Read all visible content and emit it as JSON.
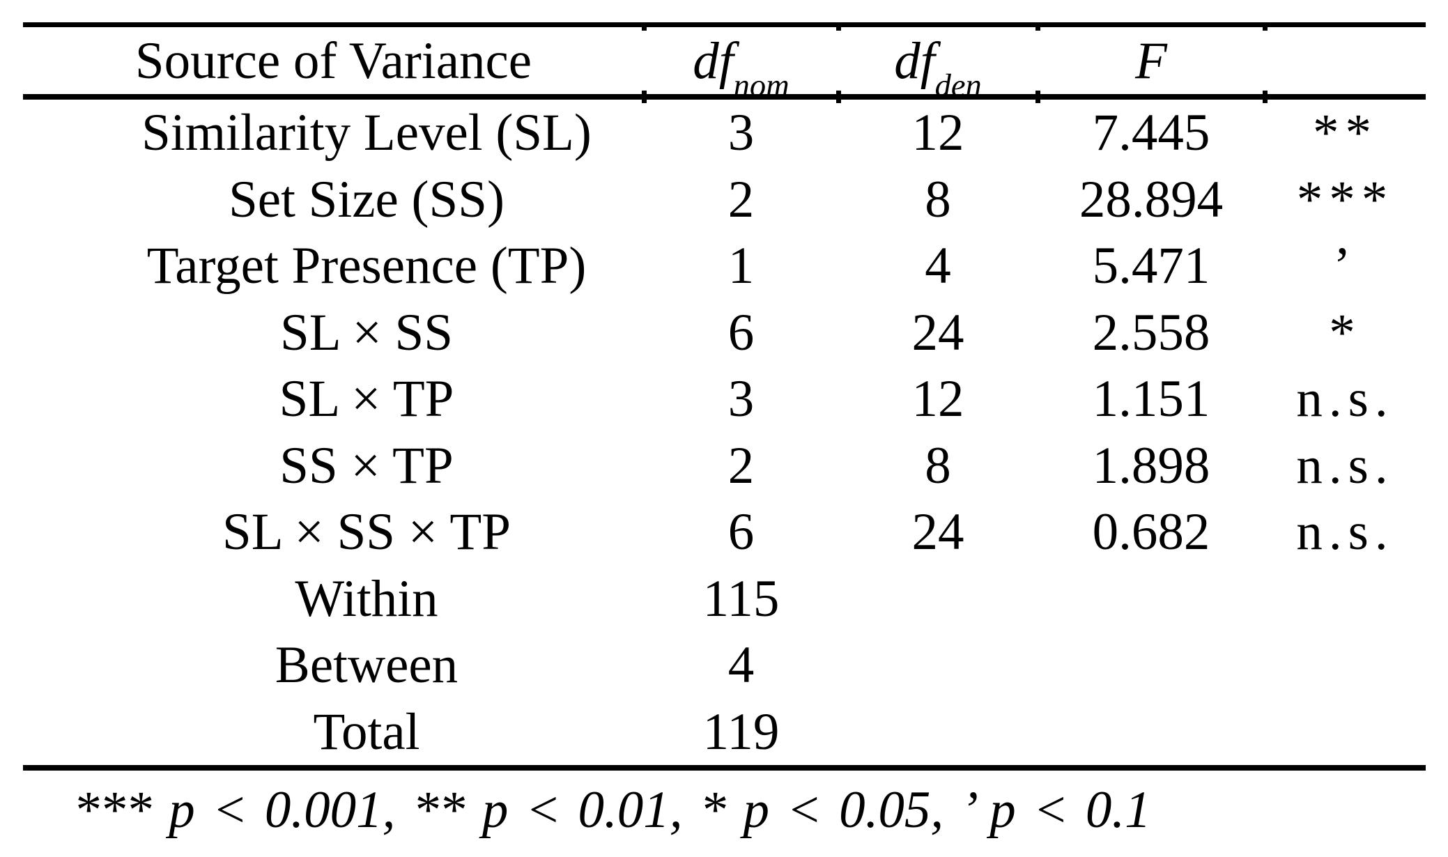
{
  "colors": {
    "background": "#ffffff",
    "text": "#000000",
    "rule": "#000000"
  },
  "table": {
    "header": {
      "source": "Source of Variance",
      "df_label": "df",
      "df_nom_sub": "nom",
      "df_den_sub": "den",
      "f_label": "F",
      "sig": ""
    },
    "rows": [
      {
        "source": "Similarity Level (SL)",
        "df_nom": "3",
        "df_den": "12",
        "F": "7.445",
        "sig": "**"
      },
      {
        "source": "Set Size (SS)",
        "df_nom": "2",
        "df_den": "8",
        "F": "28.894",
        "sig": "***"
      },
      {
        "source": "Target Presence (TP)",
        "df_nom": "1",
        "df_den": "4",
        "F": "5.471",
        "sig": "’"
      },
      {
        "source": "SL × SS",
        "df_nom": "6",
        "df_den": "24",
        "F": "2.558",
        "sig": "*"
      },
      {
        "source": "SL × TP",
        "df_nom": "3",
        "df_den": "12",
        "F": "1.151",
        "sig": "n.s."
      },
      {
        "source": "SS × TP",
        "df_nom": "2",
        "df_den": "8",
        "F": "1.898",
        "sig": "n.s."
      },
      {
        "source": "SL × SS × TP",
        "df_nom": "6",
        "df_den": "24",
        "F": "0.682",
        "sig": "n.s."
      },
      {
        "source": "Within",
        "df_nom": "115",
        "df_den": "",
        "F": "",
        "sig": ""
      },
      {
        "source": "Between",
        "df_nom": "4",
        "df_den": "",
        "F": "",
        "sig": ""
      },
      {
        "source": "Total",
        "df_nom": "119",
        "df_den": "",
        "F": "",
        "sig": ""
      }
    ],
    "footnote": "*** p < 0.001,  ** p < 0.01,  * p < 0.05,  ’ p < 0.1"
  }
}
